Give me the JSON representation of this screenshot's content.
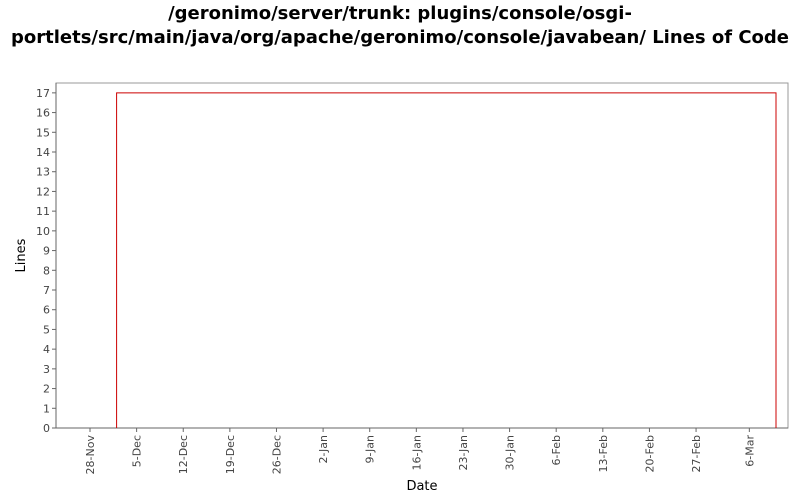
{
  "chart_data": {
    "type": "line",
    "title": "/geronimo/server/trunk: plugins/console/osgi-portlets/src/main/java/org/apache/geronimo/console/javabean/ Lines of Code",
    "xlabel": "Date",
    "ylabel": "Lines",
    "ylim": [
      0,
      17.5
    ],
    "y_ticks": [
      0,
      1,
      2,
      3,
      4,
      5,
      6,
      7,
      8,
      9,
      10,
      11,
      12,
      13,
      14,
      15,
      16,
      17
    ],
    "x_ticks": [
      "28-Nov",
      "5-Dec",
      "12-Dec",
      "19-Dec",
      "26-Dec",
      "2-Jan",
      "9-Jan",
      "16-Jan",
      "23-Jan",
      "30-Jan",
      "6-Feb",
      "13-Feb",
      "20-Feb",
      "27-Feb",
      "6-Mar"
    ],
    "grid": false,
    "legend": "none",
    "series": [
      {
        "color": "#cc0000",
        "points": [
          {
            "x": "2 Dec",
            "y": 0
          },
          {
            "x": "2 Dec",
            "y": 17
          },
          {
            "x": "10 Mar",
            "y": 17
          },
          {
            "x": "10 Mar",
            "y": 0
          }
        ]
      }
    ]
  }
}
